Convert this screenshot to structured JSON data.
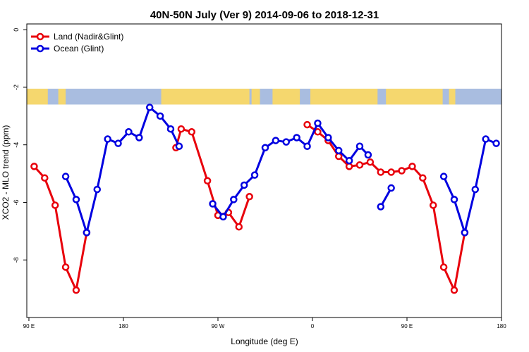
{
  "chart_data": {
    "type": "line",
    "title": "40N-50N July (Ver 9)   2014-09-06 to 2018-12-31",
    "xlabel": "Longitude (deg E)",
    "ylabel": "XCO2 - MLO trend (ppm)",
    "x_ticks": [
      {
        "value": 90,
        "label": "90 E"
      },
      {
        "value": 180,
        "label": "180"
      },
      {
        "value": 270,
        "label": "90 W"
      },
      {
        "value": 360,
        "label": "0"
      },
      {
        "value": 450,
        "label": "90 E"
      },
      {
        "value": 540,
        "label": "180"
      }
    ],
    "y_ticks": [
      {
        "value": 0,
        "label": "0"
      },
      {
        "value": -2,
        "label": "-2"
      },
      {
        "value": -4,
        "label": "-4"
      },
      {
        "value": -6,
        "label": "-6"
      },
      {
        "value": -8,
        "label": "-8"
      }
    ],
    "xlim": [
      88,
      540
    ],
    "ylim": [
      -10.0,
      0.2
    ],
    "map_strip_ylim": [
      -2.05,
      -2.6
    ],
    "legend_position": "top-left",
    "grid": false,
    "colors": {
      "land": "#e8000b",
      "ocean": "#0000e0",
      "map_land": "#f5d76e",
      "map_ocean": "#a9bde0"
    },
    "series": [
      {
        "name": "Land (Nadir&Glint)",
        "color": "#e8000b",
        "segments": [
          [
            [
              95,
              -4.75
            ],
            [
              105,
              -5.15
            ],
            [
              115,
              -6.1
            ],
            [
              125,
              -8.25
            ],
            [
              135,
              -9.05
            ],
            [
              145,
              -7.05
            ]
          ],
          [
            [
              230,
              -4.1
            ],
            [
              235,
              -3.45
            ],
            [
              245,
              -3.55
            ],
            [
              260,
              -5.25
            ],
            [
              270,
              -6.45
            ],
            [
              280,
              -6.35
            ],
            [
              290,
              -6.85
            ],
            [
              300,
              -5.8
            ]
          ],
          [
            [
              355,
              -3.3
            ],
            [
              365,
              -3.55
            ],
            [
              375,
              -3.85
            ],
            [
              385,
              -4.4
            ],
            [
              395,
              -4.75
            ],
            [
              405,
              -4.7
            ],
            [
              415,
              -4.6
            ],
            [
              425,
              -4.95
            ],
            [
              435,
              -4.95
            ],
            [
              445,
              -4.9
            ],
            [
              455,
              -4.75
            ],
            [
              465,
              -5.15
            ],
            [
              475,
              -6.1
            ],
            [
              485,
              -8.25
            ],
            [
              495,
              -9.05
            ],
            [
              505,
              -7.05
            ]
          ]
        ]
      },
      {
        "name": "Ocean (Glint)",
        "color": "#0000e0",
        "segments": [
          [
            [
              125,
              -5.1
            ],
            [
              135,
              -5.9
            ],
            [
              145,
              -7.05
            ],
            [
              155,
              -5.55
            ],
            [
              165,
              -3.8
            ],
            [
              175,
              -3.95
            ],
            [
              185,
              -3.55
            ],
            [
              195,
              -3.75
            ],
            [
              205,
              -2.7
            ],
            [
              215,
              -3.0
            ],
            [
              225,
              -3.45
            ],
            [
              233,
              -4.05
            ]
          ],
          [
            [
              265,
              -6.05
            ],
            [
              275,
              -6.5
            ],
            [
              285,
              -5.9
            ],
            [
              295,
              -5.4
            ],
            [
              305,
              -5.05
            ],
            [
              315,
              -4.1
            ],
            [
              325,
              -3.85
            ],
            [
              335,
              -3.9
            ],
            [
              345,
              -3.75
            ],
            [
              355,
              -4.05
            ],
            [
              365,
              -3.25
            ],
            [
              375,
              -3.75
            ],
            [
              385,
              -4.2
            ],
            [
              395,
              -4.55
            ],
            [
              405,
              -4.05
            ],
            [
              413,
              -4.35
            ]
          ],
          [
            [
              425,
              -6.15
            ],
            [
              435,
              -5.5
            ]
          ],
          [
            [
              485,
              -5.1
            ],
            [
              495,
              -5.9
            ],
            [
              505,
              -7.05
            ],
            [
              515,
              -5.55
            ],
            [
              525,
              -3.8
            ],
            [
              535,
              -3.95
            ]
          ]
        ]
      }
    ]
  }
}
